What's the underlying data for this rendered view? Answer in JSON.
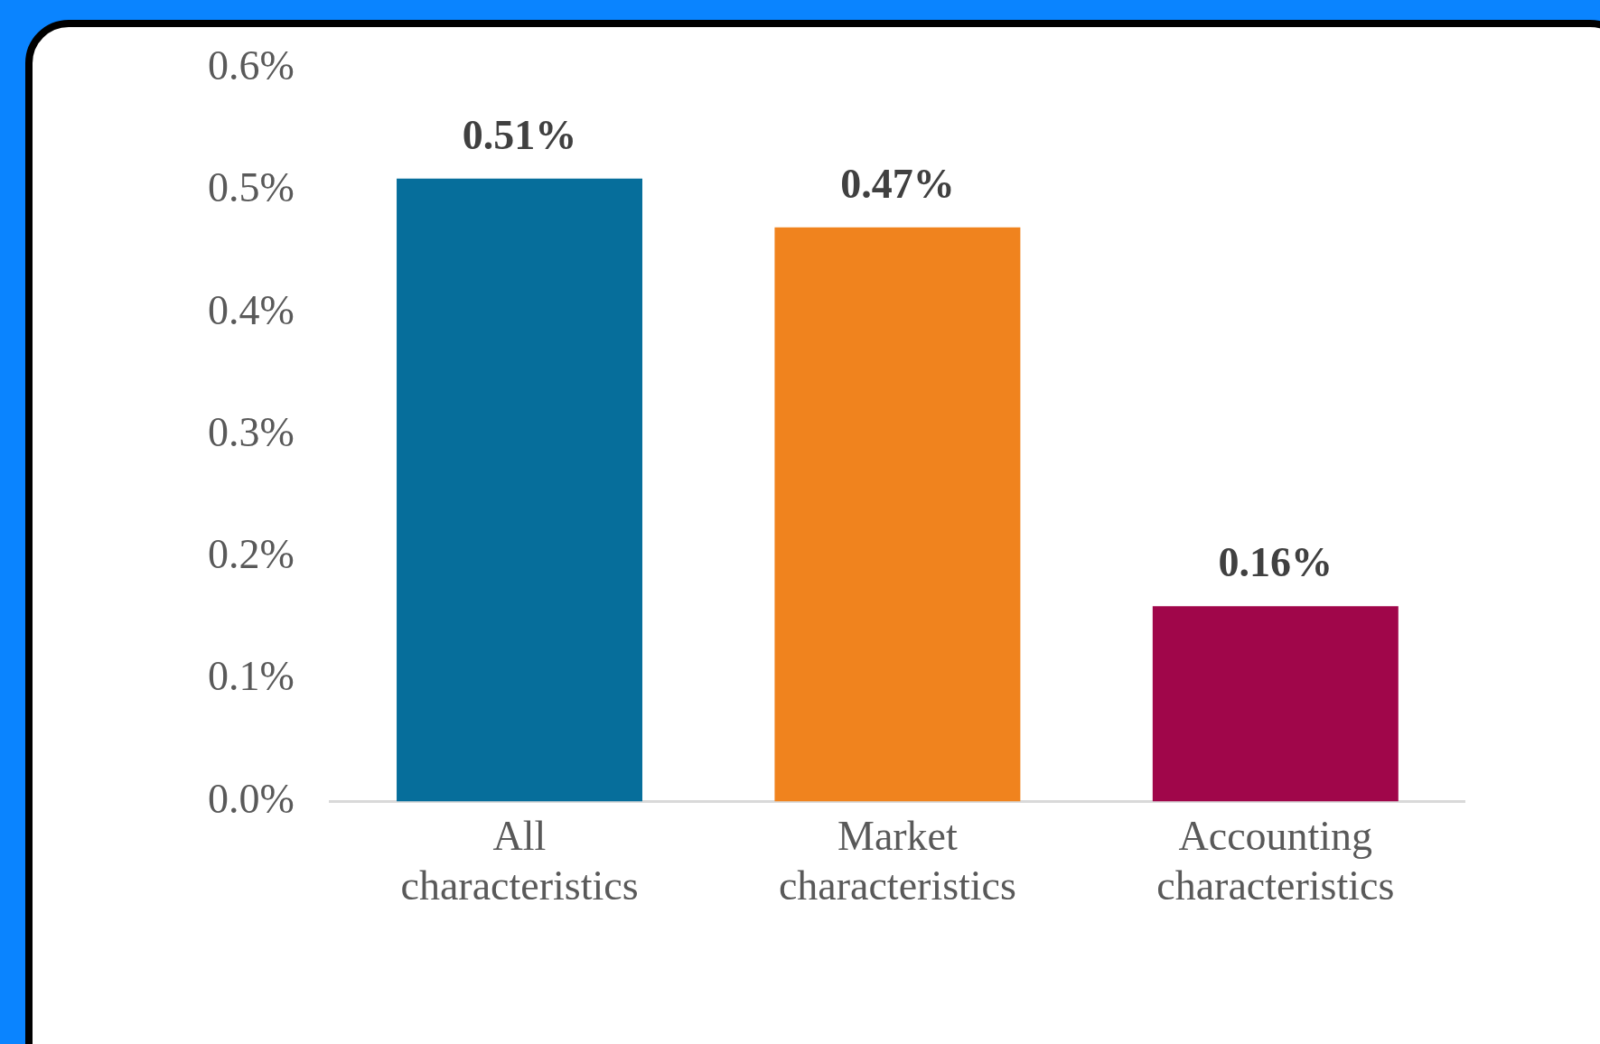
{
  "chart_data": {
    "type": "bar",
    "categories": [
      "All characteristics",
      "Market characteristics",
      "Accounting characteristics"
    ],
    "values": [
      0.51,
      0.47,
      0.16
    ],
    "colors": [
      "#066e9b",
      "#f0831e",
      "#a0064a"
    ],
    "value_labels": [
      "0.51%",
      "0.47%",
      "0.16%"
    ],
    "ylim": [
      0,
      0.6
    ],
    "yticks": [
      {
        "value": 0,
        "label": "0.0%"
      },
      {
        "value": 0.1,
        "label": "0.1%"
      },
      {
        "value": 0.2,
        "label": "0.2%"
      },
      {
        "value": 0.3,
        "label": "0.3%"
      },
      {
        "value": 0.4,
        "label": "0.4%"
      },
      {
        "value": 0.5,
        "label": "0.5%"
      },
      {
        "value": 0.6,
        "label": "0.6%"
      }
    ],
    "grid": false,
    "legend": false
  }
}
